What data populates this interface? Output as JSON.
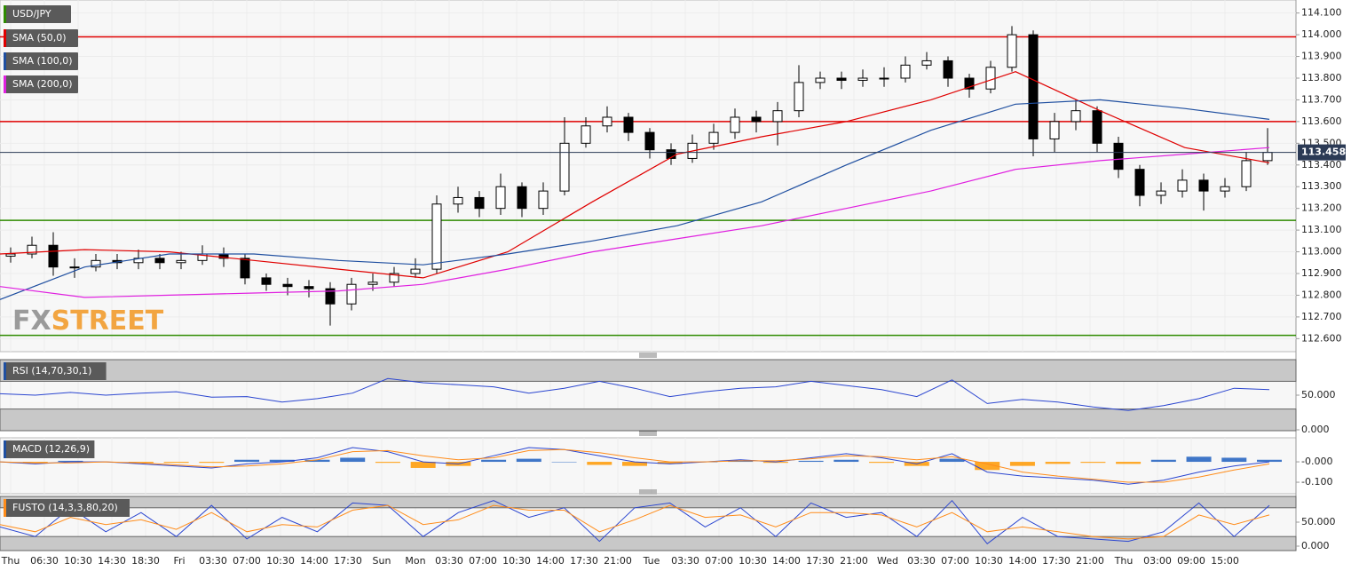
{
  "chart_data": [
    {
      "type": "candlestick",
      "title": "USD/JPY",
      "title_color": "#2e8b00",
      "open": [
        112.98,
        112.99,
        113.03,
        112.93,
        112.93,
        112.96,
        112.95,
        112.97,
        112.95,
        112.96,
        112.99,
        112.97,
        112.88,
        112.85,
        112.84,
        112.83,
        112.76,
        112.85,
        112.86,
        112.9,
        112.92,
        113.22,
        113.25,
        113.2,
        113.3,
        113.2,
        113.28,
        113.5,
        113.58,
        113.62,
        113.55,
        113.47,
        113.43,
        113.5,
        113.55,
        113.62,
        113.6,
        113.65,
        113.78,
        113.8,
        113.79,
        113.8,
        113.8,
        113.86,
        113.88,
        113.8,
        113.75,
        113.85,
        114.0,
        113.52,
        113.6,
        113.65,
        113.5,
        113.38,
        113.26,
        113.28,
        113.33,
        113.28,
        113.3,
        113.42
      ],
      "high": [
        113.02,
        113.07,
        113.09,
        112.97,
        112.99,
        112.99,
        113.01,
        112.99,
        113.0,
        113.03,
        113.02,
        112.99,
        112.9,
        112.88,
        112.87,
        112.86,
        112.88,
        112.9,
        112.93,
        112.97,
        113.26,
        113.3,
        113.28,
        113.36,
        113.32,
        113.32,
        113.62,
        113.62,
        113.67,
        113.64,
        113.57,
        113.5,
        113.54,
        113.59,
        113.66,
        113.65,
        113.69,
        113.86,
        113.83,
        113.83,
        113.84,
        113.85,
        113.9,
        113.92,
        113.9,
        113.82,
        113.88,
        114.04,
        114.02,
        113.64,
        113.7,
        113.67,
        113.53,
        113.4,
        113.32,
        113.38,
        113.36,
        113.34,
        113.46,
        113.57
      ],
      "low": [
        112.95,
        112.97,
        112.89,
        112.88,
        112.91,
        112.92,
        112.92,
        112.92,
        112.92,
        112.94,
        112.93,
        112.85,
        112.82,
        112.8,
        112.79,
        112.66,
        112.73,
        112.82,
        112.84,
        112.88,
        112.9,
        113.18,
        113.16,
        113.17,
        113.16,
        113.17,
        113.26,
        113.48,
        113.55,
        113.51,
        113.43,
        113.4,
        113.41,
        113.47,
        113.52,
        113.55,
        113.49,
        113.62,
        113.75,
        113.75,
        113.76,
        113.76,
        113.78,
        113.84,
        113.76,
        113.71,
        113.73,
        113.83,
        113.44,
        113.46,
        113.56,
        113.46,
        113.34,
        113.21,
        113.22,
        113.25,
        113.19,
        113.25,
        113.28,
        113.4
      ],
      "close": [
        112.99,
        113.03,
        112.93,
        112.93,
        112.96,
        112.95,
        112.97,
        112.95,
        112.96,
        112.99,
        112.97,
        112.88,
        112.85,
        112.84,
        112.83,
        112.76,
        112.85,
        112.86,
        112.9,
        112.92,
        113.22,
        113.25,
        113.2,
        113.3,
        113.2,
        113.28,
        113.5,
        113.58,
        113.62,
        113.55,
        113.47,
        113.43,
        113.5,
        113.55,
        113.62,
        113.6,
        113.65,
        113.78,
        113.8,
        113.79,
        113.8,
        113.8,
        113.86,
        113.88,
        113.8,
        113.75,
        113.85,
        114.0,
        113.52,
        113.6,
        113.65,
        113.5,
        113.38,
        113.26,
        113.28,
        113.33,
        113.28,
        113.3,
        113.42,
        113.458
      ],
      "series": [
        {
          "name": "SMA (50,0)",
          "color": "#e00000",
          "values": [
            112.99,
            113.01,
            113.0,
            112.96,
            112.92,
            112.88,
            113.0,
            113.23,
            113.45,
            113.53,
            113.6,
            113.7,
            113.83,
            113.65,
            113.48,
            113.41
          ]
        },
        {
          "name": "SMA (100,0)",
          "color": "#1f4fa0",
          "values": [
            112.78,
            112.93,
            112.99,
            112.99,
            112.96,
            112.94,
            112.99,
            113.05,
            113.12,
            113.23,
            113.4,
            113.56,
            113.68,
            113.7,
            113.66,
            113.61
          ]
        },
        {
          "name": "SMA (200,0)",
          "color": "#e020e0",
          "values": [
            112.84,
            112.79,
            112.8,
            112.81,
            112.82,
            112.85,
            112.92,
            113.0,
            113.06,
            113.12,
            113.2,
            113.28,
            113.38,
            113.42,
            113.45,
            113.48
          ]
        }
      ],
      "levels": [
        {
          "value": 113.99,
          "color": "#e00000"
        },
        {
          "value": 113.6,
          "color": "#e00000"
        },
        {
          "value": 113.145,
          "color": "#2e8b00"
        },
        {
          "value": 112.615,
          "color": "#2e8b00"
        }
      ],
      "last_value": 113.458,
      "ylim": [
        112.54,
        114.16
      ],
      "yticks": [
        {
          "value": 114.1,
          "label": "114.100"
        },
        {
          "value": 114.0,
          "label": "114.000"
        },
        {
          "value": 113.9,
          "label": "113.900"
        },
        {
          "value": 113.8,
          "label": "113.800"
        },
        {
          "value": 113.7,
          "label": "113.700"
        },
        {
          "value": 113.6,
          "label": "113.600"
        },
        {
          "value": 113.5,
          "label": "113.500"
        },
        {
          "value": 113.4,
          "label": "113.400"
        },
        {
          "value": 113.3,
          "label": "113.300"
        },
        {
          "value": 113.2,
          "label": "113.200"
        },
        {
          "value": 113.1,
          "label": "113.100"
        },
        {
          "value": 113.0,
          "label": "113.000"
        },
        {
          "value": 112.9,
          "label": "112.900"
        },
        {
          "value": 112.8,
          "label": "112.800"
        },
        {
          "value": 112.7,
          "label": "112.700"
        },
        {
          "value": 112.6,
          "label": "112.600"
        }
      ]
    },
    {
      "type": "line",
      "title": "RSI (14,70,30,1)",
      "title_color": "#1f4fa0",
      "bands": [
        30,
        70
      ],
      "series": [
        {
          "color": "#2a45d0",
          "values": [
            52,
            50,
            54,
            50,
            53,
            55,
            47,
            48,
            40,
            45,
            53,
            74,
            68,
            65,
            62,
            53,
            60,
            70,
            60,
            48,
            55,
            60,
            62,
            70,
            64,
            58,
            48,
            72,
            38,
            44,
            40,
            33,
            28,
            35,
            45,
            60,
            58
          ]
        }
      ],
      "ylim": [
        0,
        100
      ],
      "yticks": [
        {
          "value": 50,
          "label": "50.000"
        },
        {
          "value": 0,
          "label": "0.000"
        }
      ]
    },
    {
      "type": "line",
      "title": "MACD (12,26,9)",
      "title_color": "#1f4fa0",
      "histogram": [
        0,
        -0.005,
        0.005,
        0,
        -0.005,
        -0.005,
        -0.005,
        0.01,
        0.01,
        0.01,
        0.02,
        -0.005,
        -0.03,
        -0.02,
        0.01,
        0.015,
        0,
        -0.015,
        -0.02,
        -0.01,
        0,
        0.005,
        -0.005,
        0.005,
        0.01,
        -0.005,
        -0.02,
        0.015,
        -0.04,
        -0.02,
        -0.01,
        -0.005,
        -0.01,
        0.01,
        0.025,
        0.02,
        0.01
      ],
      "histogram_colors": [
        "#1f5fbf",
        "#ff9900"
      ],
      "series": [
        {
          "color": "#2a45d0",
          "values": [
            0.0,
            -0.01,
            0.0,
            0.0,
            -0.01,
            -0.02,
            -0.03,
            -0.01,
            0.0,
            0.02,
            0.07,
            0.05,
            0.0,
            -0.01,
            0.03,
            0.07,
            0.06,
            0.03,
            0.0,
            -0.01,
            0.0,
            0.01,
            0.0,
            0.02,
            0.04,
            0.02,
            -0.01,
            0.04,
            -0.05,
            -0.07,
            -0.08,
            -0.09,
            -0.11,
            -0.09,
            -0.05,
            -0.02,
            0.0
          ]
        },
        {
          "color": "#ff8c1a",
          "values": [
            0.0,
            -0.005,
            -0.005,
            0.0,
            -0.005,
            -0.015,
            -0.025,
            -0.02,
            -0.01,
            0.01,
            0.05,
            0.055,
            0.03,
            0.01,
            0.02,
            0.055,
            0.06,
            0.045,
            0.02,
            0.0,
            0.0,
            0.005,
            0.005,
            0.015,
            0.03,
            0.025,
            0.01,
            0.025,
            -0.01,
            -0.05,
            -0.07,
            -0.085,
            -0.1,
            -0.1,
            -0.075,
            -0.04,
            -0.01
          ]
        }
      ],
      "ylim": [
        -0.152,
        0.109
      ],
      "yticks": [
        {
          "value": 0,
          "label": "-0.000"
        },
        {
          "value": -0.1,
          "label": "-0.100"
        }
      ]
    },
    {
      "type": "line",
      "title": "FUSTO (14,3,3,80,20)",
      "title_color": "#ff8c1a",
      "bands": [
        20,
        80
      ],
      "series": [
        {
          "color": "#2a45d0",
          "values": [
            40,
            20,
            80,
            30,
            70,
            20,
            85,
            15,
            60,
            30,
            90,
            85,
            20,
            70,
            95,
            60,
            80,
            10,
            80,
            90,
            40,
            80,
            20,
            90,
            60,
            70,
            20,
            95,
            5,
            60,
            20,
            15,
            10,
            30,
            90,
            20,
            85
          ]
        },
        {
          "color": "#ff8c1a",
          "values": [
            45,
            30,
            60,
            45,
            55,
            35,
            70,
            30,
            45,
            40,
            75,
            85,
            45,
            55,
            85,
            75,
            75,
            30,
            55,
            85,
            60,
            65,
            40,
            70,
            70,
            65,
            40,
            70,
            30,
            40,
            30,
            20,
            15,
            20,
            65,
            45,
            65
          ]
        }
      ],
      "ylim": [
        0,
        100
      ],
      "yticks": [
        {
          "value": 50,
          "label": "50.000"
        },
        {
          "value": 0,
          "label": "0.000"
        }
      ]
    }
  ],
  "time_labels": [
    "Thu",
    "06:30",
    "10:30",
    "14:30",
    "18:30",
    "Fri",
    "03:30",
    "07:00",
    "10:30",
    "14:00",
    "17:30",
    "Sun",
    "Mon",
    "03:30",
    "07:00",
    "10:30",
    "14:00",
    "17:30",
    "21:00",
    "Tue",
    "03:30",
    "07:00",
    "10:30",
    "14:00",
    "17:30",
    "21:00",
    "Wed",
    "03:30",
    "07:00",
    "10:30",
    "14:00",
    "17:30",
    "21:00",
    "Thu",
    "03:00",
    "09:00",
    "15:00"
  ],
  "logo": [
    "FX",
    "STREET"
  ]
}
